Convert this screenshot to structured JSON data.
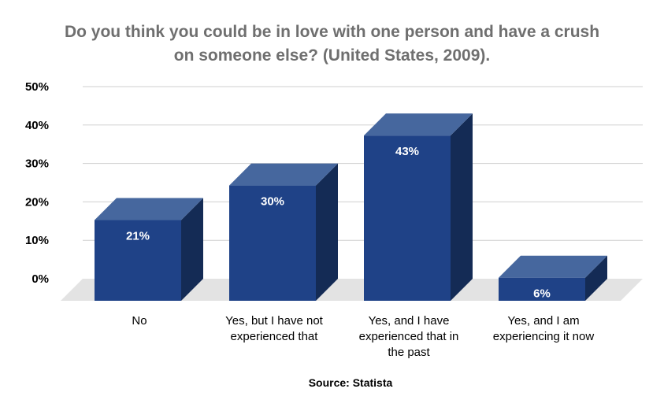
{
  "title_lines": [
    "Do you think you could be in love with one person and have a crush",
    "on someone else? (United States, 2009)."
  ],
  "source": "Source: Statista",
  "colors": {
    "bar_front": "#1f4287",
    "bar_top": "#46679e",
    "bar_side": "#142b55",
    "floor": "#e3e3e3",
    "grid": "#cfcfcf",
    "title": "#6f6f6f"
  },
  "chart_data": {
    "type": "bar",
    "title": "Do you think you could be in love with one person and have a crush on someone else? (United States, 2009).",
    "categories": [
      [
        "No"
      ],
      [
        "Yes, but I have not",
        "experienced that"
      ],
      [
        "Yes, and I have",
        "experienced that in",
        "the past"
      ],
      [
        "Yes, and I am",
        "experiencing it now"
      ]
    ],
    "values": [
      21,
      30,
      43,
      6
    ],
    "value_labels": [
      "21%",
      "30%",
      "43%",
      "6%"
    ],
    "yticks": [
      "0%",
      "10%",
      "20%",
      "30%",
      "40%",
      "50%"
    ],
    "ylim": [
      0,
      50
    ],
    "grid": true,
    "legend": "none"
  }
}
